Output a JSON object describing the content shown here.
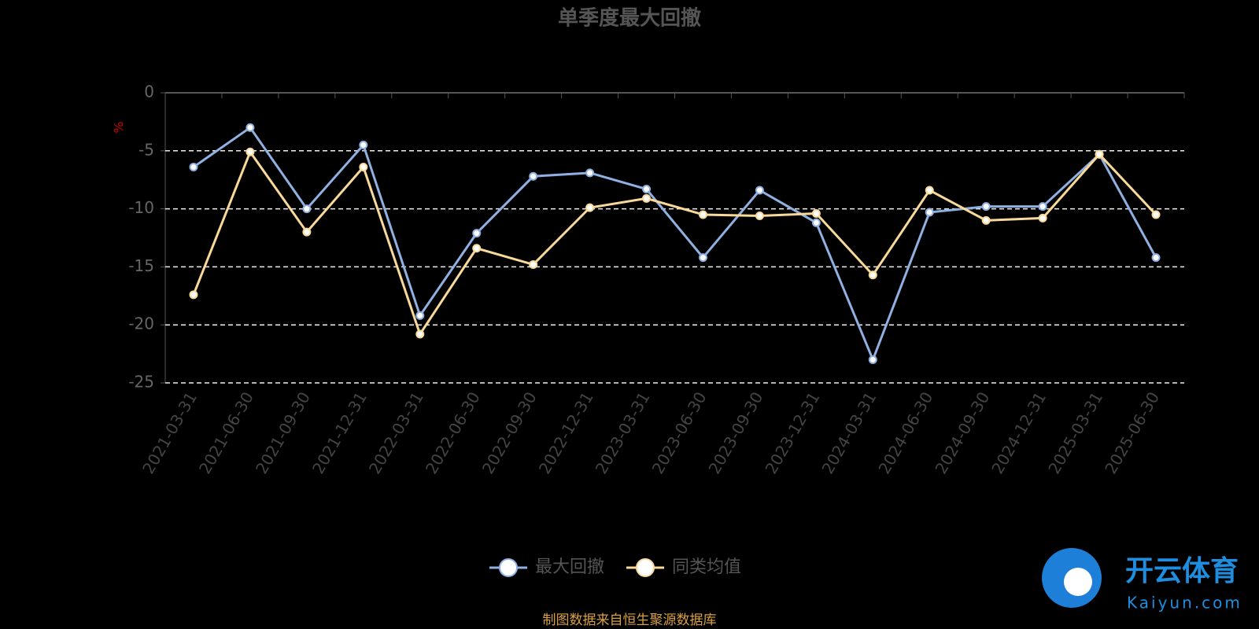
{
  "chart_data": {
    "type": "line",
    "title": "单季度最大回撤",
    "y_label": "%",
    "categories": [
      "2021-03-31",
      "2021-06-30",
      "2021-09-30",
      "2021-12-31",
      "2022-03-31",
      "2022-06-30",
      "2022-09-30",
      "2022-12-31",
      "2023-03-31",
      "2023-06-30",
      "2023-09-30",
      "2023-12-31",
      "2024-03-31",
      "2024-06-30",
      "2024-09-30",
      "2024-12-31",
      "2025-03-31",
      "2025-06-30"
    ],
    "series": [
      {
        "name": "最大回撤",
        "color": "#8fb0e0",
        "values": [
          -6.4,
          -3.0,
          -10.0,
          -4.5,
          -19.2,
          -12.1,
          -7.2,
          -6.9,
          -8.3,
          -14.2,
          -8.4,
          -11.2,
          -23.0,
          -10.3,
          -9.8,
          -9.8,
          -5.3,
          -14.2
        ]
      },
      {
        "name": "同类均值",
        "color": "#f8d99a",
        "values": [
          -17.4,
          -5.1,
          -12.0,
          -6.4,
          -20.8,
          -13.4,
          -14.8,
          -9.9,
          -9.1,
          -10.5,
          -10.6,
          -10.4,
          -15.7,
          -8.4,
          -11.0,
          -10.8,
          -5.3,
          -10.5
        ]
      }
    ],
    "ylim": [
      -25,
      0
    ],
    "yticks": [
      0,
      -5,
      -10,
      -15,
      -20,
      -25
    ],
    "grid": true,
    "legend": "bottom",
    "source": "制图数据来自恒生聚源数据库",
    "watermark": {
      "name": "开云体育",
      "site": "Kaiyun.com"
    }
  }
}
